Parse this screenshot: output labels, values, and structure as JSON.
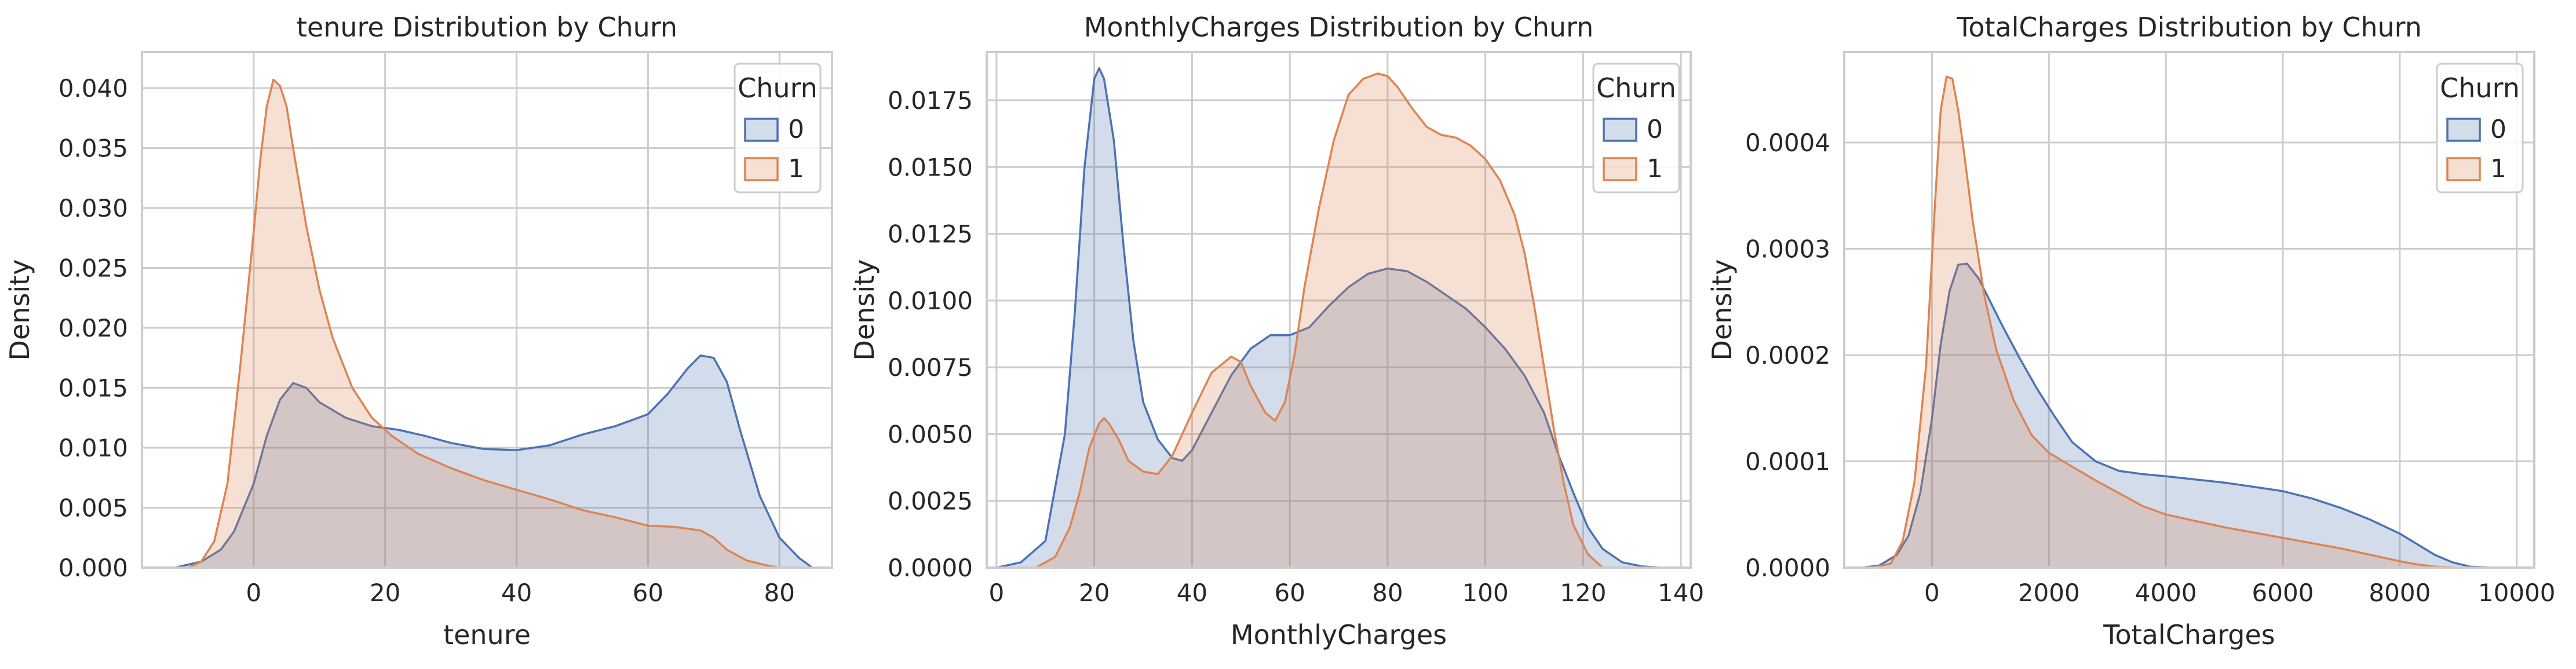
{
  "legend_title_text": "Churn",
  "colors": {
    "churn_0": "#4c72b0",
    "churn_1": "#dd8452",
    "grid": "#cccccc",
    "spine": "#cccccc",
    "text": "#262626"
  },
  "chart_data": [
    {
      "type": "area",
      "title": "tenure Distribution by Churn",
      "xlabel": "tenure",
      "ylabel": "Density",
      "xlim": [
        -17,
        88
      ],
      "ylim": [
        0,
        0.043
      ],
      "xticks": [
        0,
        20,
        40,
        60,
        80
      ],
      "xtick_labels": [
        "0",
        "20",
        "40",
        "60",
        "80"
      ],
      "yticks": [
        0,
        0.005,
        0.01,
        0.015,
        0.02,
        0.025,
        0.03,
        0.035,
        0.04
      ],
      "ytick_labels": [
        "0.000",
        "0.005",
        "0.010",
        "0.015",
        "0.020",
        "0.025",
        "0.030",
        "0.035",
        "0.040"
      ],
      "grid": true,
      "legend": {
        "title": "Churn",
        "placement": "top-right",
        "entries": [
          "0",
          "1"
        ]
      },
      "series": [
        {
          "name": "0",
          "color": "#4c72b0",
          "x": [
            -12,
            -8,
            -5,
            -3,
            0,
            2,
            4,
            6,
            8,
            10,
            14,
            18,
            22,
            26,
            30,
            35,
            40,
            45,
            50,
            55,
            60,
            63,
            66,
            68,
            70,
            72,
            74,
            77,
            80,
            83,
            85
          ],
          "y": [
            0,
            0.0005,
            0.0015,
            0.003,
            0.007,
            0.011,
            0.014,
            0.0154,
            0.015,
            0.0138,
            0.0125,
            0.0118,
            0.0115,
            0.011,
            0.0104,
            0.0099,
            0.0098,
            0.0102,
            0.0111,
            0.0118,
            0.0128,
            0.0145,
            0.0166,
            0.0177,
            0.0175,
            0.0155,
            0.0115,
            0.006,
            0.0025,
            0.0008,
            0
          ]
        },
        {
          "name": "1",
          "color": "#dd8452",
          "x": [
            -10,
            -8,
            -6,
            -4,
            -2,
            0,
            1,
            2,
            3,
            4,
            5,
            6,
            8,
            10,
            12,
            15,
            18,
            21,
            25,
            30,
            35,
            40,
            45,
            50,
            55,
            60,
            64,
            68,
            70,
            72,
            75,
            78,
            80
          ],
          "y": [
            0,
            0.0005,
            0.0022,
            0.007,
            0.017,
            0.028,
            0.034,
            0.0385,
            0.0407,
            0.0402,
            0.0385,
            0.035,
            0.0285,
            0.0232,
            0.0192,
            0.015,
            0.0125,
            0.011,
            0.0095,
            0.0083,
            0.0073,
            0.0065,
            0.0057,
            0.0048,
            0.0042,
            0.0035,
            0.0034,
            0.0031,
            0.0025,
            0.0015,
            0.0006,
            0.0002,
            0
          ]
        }
      ]
    },
    {
      "type": "area",
      "title": "MonthlyCharges Distribution by Churn",
      "xlabel": "MonthlyCharges",
      "ylabel": "Density",
      "xlim": [
        -2,
        142
      ],
      "ylim": [
        0,
        0.0193
      ],
      "xticks": [
        0,
        20,
        40,
        60,
        80,
        100,
        120,
        140
      ],
      "xtick_labels": [
        "0",
        "20",
        "40",
        "60",
        "80",
        "100",
        "120",
        "140"
      ],
      "yticks": [
        0,
        0.0025,
        0.005,
        0.0075,
        0.01,
        0.0125,
        0.015,
        0.0175
      ],
      "ytick_labels": [
        "0.0000",
        "0.0025",
        "0.0050",
        "0.0075",
        "0.0100",
        "0.0125",
        "0.0150",
        "0.0175"
      ],
      "grid": true,
      "legend": {
        "title": "Churn",
        "placement": "top-right",
        "entries": [
          "0",
          "1"
        ]
      },
      "series": [
        {
          "name": "0",
          "color": "#4c72b0",
          "x": [
            0,
            5,
            10,
            14,
            16,
            18,
            20,
            21,
            22,
            24,
            26,
            28,
            30,
            33,
            36,
            38,
            40,
            44,
            48,
            52,
            56,
            60,
            64,
            68,
            72,
            76,
            80,
            84,
            88,
            92,
            96,
            100,
            104,
            108,
            112,
            115,
            118,
            121,
            124,
            128,
            132,
            136
          ],
          "y": [
            0,
            0.0002,
            0.001,
            0.005,
            0.0095,
            0.015,
            0.0183,
            0.0187,
            0.0183,
            0.016,
            0.012,
            0.0085,
            0.0062,
            0.0048,
            0.0041,
            0.004,
            0.0044,
            0.0058,
            0.0072,
            0.0082,
            0.0087,
            0.0087,
            0.009,
            0.0098,
            0.0105,
            0.011,
            0.0112,
            0.0111,
            0.0107,
            0.0102,
            0.0097,
            0.009,
            0.0082,
            0.0072,
            0.0058,
            0.0042,
            0.0028,
            0.0015,
            0.0007,
            0.0002,
            5e-05,
            0
          ]
        },
        {
          "name": "1",
          "color": "#dd8452",
          "x": [
            8,
            12,
            15,
            17,
            19,
            21,
            22,
            23,
            25,
            27,
            30,
            33,
            36,
            40,
            44,
            48,
            50,
            52,
            55,
            57,
            59,
            61,
            63,
            66,
            69,
            72,
            75,
            78,
            80,
            82,
            85,
            88,
            91,
            94,
            97,
            100,
            103,
            106,
            108,
            110,
            112,
            114,
            116,
            118,
            121,
            124
          ],
          "y": [
            0,
            0.0004,
            0.0015,
            0.0028,
            0.0045,
            0.0054,
            0.0056,
            0.0054,
            0.0048,
            0.004,
            0.0036,
            0.0035,
            0.0042,
            0.0058,
            0.0073,
            0.0079,
            0.0077,
            0.0068,
            0.0058,
            0.0055,
            0.0062,
            0.008,
            0.0105,
            0.0135,
            0.016,
            0.0177,
            0.0183,
            0.0185,
            0.0184,
            0.018,
            0.0172,
            0.0165,
            0.0162,
            0.0161,
            0.0158,
            0.0153,
            0.0145,
            0.0132,
            0.0118,
            0.0098,
            0.0075,
            0.0052,
            0.0032,
            0.0016,
            0.0005,
            0
          ]
        }
      ]
    },
    {
      "type": "area",
      "title": "TotalCharges Distribution by Churn",
      "xlabel": "TotalCharges",
      "ylabel": "Density",
      "xlim": [
        -1500,
        10300
      ],
      "ylim": [
        0,
        0.000485
      ],
      "xticks": [
        0,
        2000,
        4000,
        6000,
        8000,
        10000
      ],
      "xtick_labels": [
        "0",
        "2000",
        "4000",
        "6000",
        "8000",
        "10000"
      ],
      "yticks": [
        0,
        0.0001,
        0.0002,
        0.0003,
        0.0004
      ],
      "ytick_labels": [
        "0.0000",
        "0.0001",
        "0.0002",
        "0.0003",
        "0.0004"
      ],
      "grid": true,
      "legend": {
        "title": "Churn",
        "placement": "top-right",
        "entries": [
          "0",
          "1"
        ]
      },
      "series": [
        {
          "name": "0",
          "color": "#4c72b0",
          "x": [
            -1200,
            -900,
            -600,
            -400,
            -200,
            0,
            150,
            300,
            450,
            600,
            800,
            1000,
            1200,
            1500,
            1800,
            2100,
            2400,
            2800,
            3200,
            3600,
            4000,
            4500,
            5000,
            5500,
            6000,
            6500,
            7000,
            7500,
            8000,
            8300,
            8600,
            8900,
            9200,
            9600
          ],
          "y": [
            0,
            2e-06,
            1.2e-05,
            3e-05,
            7e-05,
            0.00014,
            0.00021,
            0.00026,
            0.000285,
            0.000286,
            0.000272,
            0.00025,
            0.000228,
            0.000197,
            0.000168,
            0.000142,
            0.000118,
            0.0001,
            9.1e-05,
            8.8e-05,
            8.6e-05,
            8.3e-05,
            8e-05,
            7.6e-05,
            7.2e-05,
            6.5e-05,
            5.6e-05,
            4.5e-05,
            3.2e-05,
            2.2e-05,
            1.2e-05,
            5e-06,
            1e-06,
            0
          ]
        },
        {
          "name": "1",
          "color": "#dd8452",
          "x": [
            -1000,
            -700,
            -500,
            -300,
            -100,
            50,
            150,
            250,
            350,
            450,
            550,
            700,
            900,
            1100,
            1400,
            1700,
            2000,
            2400,
            2800,
            3200,
            3600,
            4000,
            4500,
            5000,
            5500,
            6000,
            6500,
            7000,
            7500,
            8000,
            8300,
            8600,
            9000
          ],
          "y": [
            0,
            4e-06,
            2.5e-05,
            8e-05,
            0.00019,
            0.00034,
            0.00043,
            0.000462,
            0.00046,
            0.00043,
            0.00039,
            0.000325,
            0.000255,
            0.000205,
            0.000157,
            0.000125,
            0.000108,
            9.5e-05,
            8.2e-05,
            7e-05,
            5.8e-05,
            5e-05,
            4.4e-05,
            3.8e-05,
            3.3e-05,
            2.8e-05,
            2.3e-05,
            1.8e-05,
            1.2e-05,
            6e-06,
            3e-06,
            1e-06,
            0
          ]
        }
      ]
    }
  ]
}
